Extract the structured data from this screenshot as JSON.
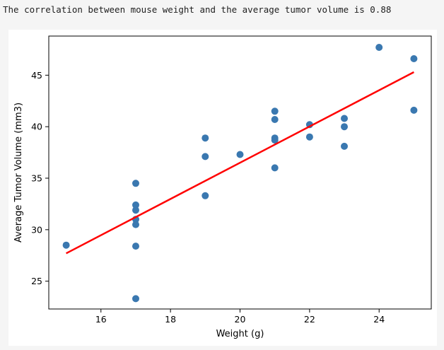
{
  "output": {
    "correlation_text": "The correlation between mouse weight and the average tumor volume is 0.88"
  },
  "chart_data": {
    "type": "scatter",
    "title": "",
    "xlabel": "Weight (g)",
    "ylabel": "Average Tumor Volume (mm3)",
    "xlim": [
      14.5,
      25.5
    ],
    "ylim": [
      22.3,
      48.8
    ],
    "xticks": [
      16,
      18,
      20,
      22,
      24
    ],
    "yticks": [
      25,
      30,
      35,
      40,
      45
    ],
    "grid": false,
    "points": [
      {
        "x": 15,
        "y": 28.5
      },
      {
        "x": 17,
        "y": 34.5
      },
      {
        "x": 17,
        "y": 32.4
      },
      {
        "x": 17,
        "y": 31.9
      },
      {
        "x": 17,
        "y": 31.0
      },
      {
        "x": 17,
        "y": 30.5
      },
      {
        "x": 17,
        "y": 28.4
      },
      {
        "x": 17,
        "y": 23.3
      },
      {
        "x": 19,
        "y": 38.9
      },
      {
        "x": 19,
        "y": 37.1
      },
      {
        "x": 19,
        "y": 33.3
      },
      {
        "x": 20,
        "y": 37.3
      },
      {
        "x": 21,
        "y": 41.5
      },
      {
        "x": 21,
        "y": 40.7
      },
      {
        "x": 21,
        "y": 38.9
      },
      {
        "x": 21,
        "y": 38.7
      },
      {
        "x": 21,
        "y": 36.0
      },
      {
        "x": 22,
        "y": 40.2
      },
      {
        "x": 22,
        "y": 39.0
      },
      {
        "x": 23,
        "y": 40.8
      },
      {
        "x": 23,
        "y": 40.0
      },
      {
        "x": 23,
        "y": 38.1
      },
      {
        "x": 24,
        "y": 47.7
      },
      {
        "x": 25,
        "y": 46.6
      },
      {
        "x": 25,
        "y": 41.6
      }
    ],
    "regression_line": {
      "x": [
        15,
        25
      ],
      "y": [
        27.7,
        45.3
      ]
    },
    "colors": {
      "points": "#3a78b0",
      "regression_line": "#ff0000",
      "axes": "#000000"
    }
  }
}
